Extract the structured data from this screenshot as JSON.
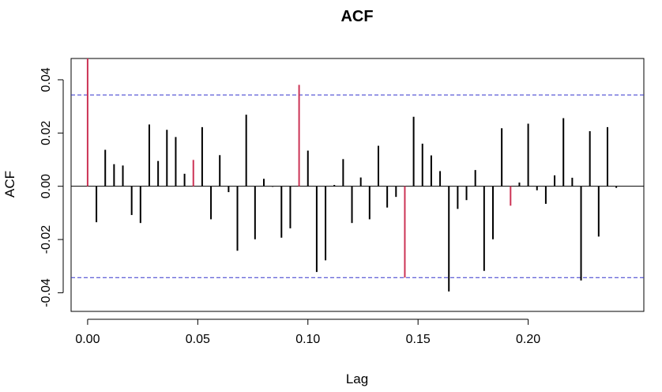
{
  "chart_data": {
    "type": "bar",
    "title": "ACF",
    "xlabel": "Lag",
    "ylabel": "ACF",
    "xlim": [
      -0.0075,
      0.2525
    ],
    "ylim": [
      -0.047,
      0.048
    ],
    "xticks": [
      0.0,
      0.05,
      0.1,
      0.15,
      0.2
    ],
    "xtick_labels": [
      "0.00",
      "0.05",
      "0.10",
      "0.15",
      "0.20"
    ],
    "yticks": [
      -0.04,
      -0.02,
      0.0,
      0.02,
      0.04
    ],
    "ytick_labels": [
      "-0.04",
      "-0.02",
      "0.00",
      "0.02",
      "0.04"
    ],
    "confidence_bounds": [
      0.0343,
      -0.0343
    ],
    "grid": false,
    "highlight_color": "#cc3355",
    "bar_color": "#000000",
    "bound_color": "#3333cc",
    "lags": [
      0.0,
      0.004,
      0.008,
      0.012,
      0.016,
      0.02,
      0.024,
      0.028,
      0.032,
      0.036,
      0.04,
      0.044,
      0.048,
      0.052,
      0.056,
      0.06,
      0.064,
      0.068,
      0.072,
      0.076,
      0.08,
      0.084,
      0.088,
      0.092,
      0.096,
      0.1,
      0.104,
      0.108,
      0.112,
      0.116,
      0.12,
      0.124,
      0.128,
      0.132,
      0.136,
      0.14,
      0.144,
      0.148,
      0.152,
      0.156,
      0.16,
      0.164,
      0.168,
      0.172,
      0.176,
      0.18,
      0.184,
      0.188,
      0.192,
      0.196,
      0.2,
      0.204,
      0.208,
      0.212,
      0.216,
      0.22,
      0.224,
      0.228,
      0.232,
      0.236,
      0.24
    ],
    "values": [
      0.048,
      -0.0135,
      0.0137,
      0.0083,
      0.0078,
      -0.0108,
      -0.0138,
      0.0232,
      0.0095,
      0.0212,
      0.0185,
      0.0047,
      0.0099,
      0.0222,
      -0.0124,
      0.0117,
      -0.0022,
      -0.0242,
      0.0269,
      -0.0199,
      0.0028,
      -0.0002,
      -0.0193,
      -0.0158,
      0.0381,
      0.0134,
      -0.0322,
      -0.0278,
      0.0005,
      0.0102,
      -0.0138,
      0.0033,
      -0.0124,
      0.0152,
      -0.008,
      -0.004,
      -0.0343,
      0.0261,
      0.016,
      0.0116,
      0.0057,
      -0.0395,
      -0.0085,
      -0.0052,
      0.0061,
      -0.0318,
      -0.0199,
      0.0218,
      -0.0073,
      0.0014,
      0.0235,
      -0.0015,
      -0.0066,
      0.0041,
      0.0256,
      0.0032,
      -0.0354,
      0.0207,
      -0.0189,
      0.0222,
      -0.0006
    ],
    "highlighted_lags": [
      0.0,
      0.048,
      0.096,
      0.144,
      0.192
    ]
  }
}
